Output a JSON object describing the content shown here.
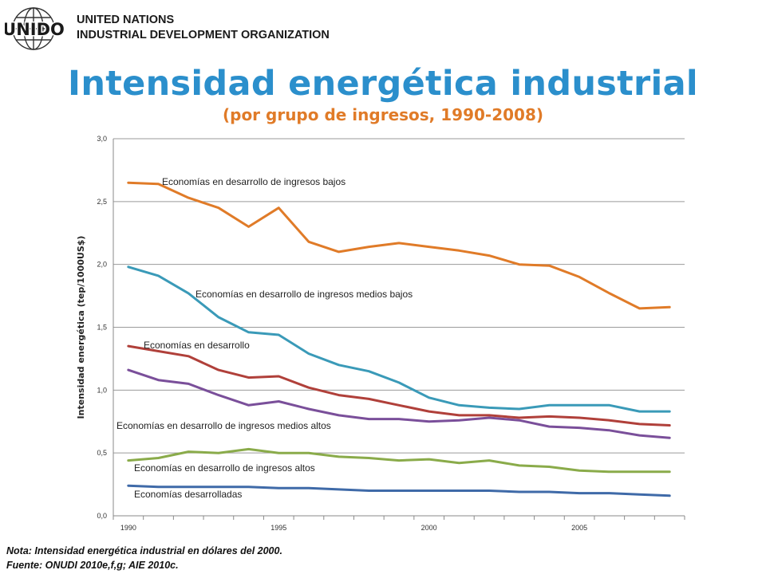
{
  "logo_text": "UNIDO",
  "organization": {
    "line1": "UNITED NATIONS",
    "line2": "INDUSTRIAL DEVELOPMENT ORGANIZATION"
  },
  "chart_data": {
    "type": "line",
    "title": "Intensidad energética industrial",
    "subtitle": "(por grupo de ingresos, 1990-2008)",
    "xlabel": "",
    "ylabel": "Intensidad energética (tep/1000US$)",
    "x": [
      1990,
      1991,
      1992,
      1993,
      1994,
      1995,
      1996,
      1997,
      1998,
      1999,
      2000,
      2001,
      2002,
      2003,
      2004,
      2005,
      2006,
      2007,
      2008
    ],
    "x_ticks": [
      "1990",
      "1995",
      "2000",
      "2005"
    ],
    "y_ticks": [
      "0,0",
      "0,5",
      "1,0",
      "1,5",
      "2,0",
      "2,5",
      "3,0"
    ],
    "xlim": [
      1989.5,
      2008.5
    ],
    "ylim": [
      0,
      3
    ],
    "grid": "horizontal",
    "series": [
      {
        "name": "Economías en desarrollo de ingresos bajos",
        "color": "#e07b28",
        "values": [
          2.65,
          2.64,
          2.53,
          2.45,
          2.3,
          2.45,
          2.18,
          2.1,
          2.14,
          2.17,
          2.14,
          2.11,
          2.07,
          2.0,
          1.99,
          1.9,
          1.77,
          1.65,
          1.66
        ]
      },
      {
        "name": "Economías en desarrollo de ingresos medios bajos",
        "color": "#3a9ab8",
        "values": [
          1.98,
          1.91,
          1.77,
          1.58,
          1.46,
          1.44,
          1.29,
          1.2,
          1.15,
          1.06,
          0.94,
          0.88,
          0.86,
          0.85,
          0.88,
          0.88,
          0.88,
          0.83,
          0.83
        ]
      },
      {
        "name": "Economías en desarrollo",
        "color": "#b0403a",
        "values": [
          1.35,
          1.31,
          1.27,
          1.16,
          1.1,
          1.11,
          1.02,
          0.96,
          0.93,
          0.88,
          0.83,
          0.8,
          0.8,
          0.78,
          0.79,
          0.78,
          0.76,
          0.73,
          0.72
        ]
      },
      {
        "name": "Economías en desarrollo de ingresos medios altos",
        "color": "#7a4f9a",
        "values": [
          1.16,
          1.08,
          1.05,
          0.96,
          0.88,
          0.91,
          0.85,
          0.8,
          0.77,
          0.77,
          0.75,
          0.76,
          0.78,
          0.76,
          0.71,
          0.7,
          0.68,
          0.64,
          0.62
        ]
      },
      {
        "name": "Economías en desarrollo de ingresos altos",
        "color": "#8aab4a",
        "values": [
          0.44,
          0.46,
          0.51,
          0.5,
          0.53,
          0.5,
          0.5,
          0.47,
          0.46,
          0.44,
          0.45,
          0.42,
          0.44,
          0.4,
          0.39,
          0.36,
          0.35,
          0.35,
          0.35
        ]
      },
      {
        "name": "Economías desarrolladas",
        "color": "#3f6aa8",
        "values": [
          0.24,
          0.23,
          0.23,
          0.23,
          0.23,
          0.22,
          0.22,
          0.21,
          0.2,
          0.2,
          0.2,
          0.2,
          0.2,
          0.19,
          0.19,
          0.18,
          0.18,
          0.17,
          0.16
        ]
      }
    ]
  },
  "footnote": {
    "note": "Nota: Intensidad energética industrial en dólares del 2000.",
    "source": "Fuente: ONUDI 2010e,f,g; AIE 2010c."
  }
}
